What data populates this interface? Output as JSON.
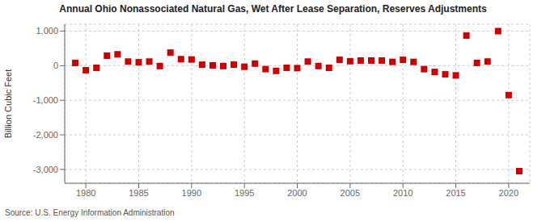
{
  "chart_data": {
    "type": "scatter",
    "title": "Annual Ohio Nonassociated Natural Gas, Wet After Lease Separation, Reserves Adjustments",
    "ylabel": "Billion Cubic Feet",
    "annotations": [
      "Source: U.S. Energy Information Administration"
    ],
    "color": "#cc0000",
    "marker": "square",
    "grid": true,
    "xlim": [
      1978,
      2022
    ],
    "ylim": [
      -3400,
      1200
    ],
    "xticks": [
      1980,
      1985,
      1990,
      1995,
      2000,
      2005,
      2010,
      2015,
      2020
    ],
    "yticks": [
      {
        "value": 1000,
        "label": "1,000"
      },
      0,
      {
        "value": -1000,
        "label": "-1,000"
      },
      {
        "value": -2000,
        "label": "-2,000"
      },
      {
        "value": -3000,
        "label": "-3,000"
      }
    ],
    "x": [
      1979,
      1980,
      1981,
      1982,
      1983,
      1984,
      1985,
      1986,
      1987,
      1988,
      1989,
      1990,
      1991,
      1992,
      1993,
      1994,
      1995,
      1996,
      1997,
      1998,
      1999,
      2000,
      2001,
      2002,
      2003,
      2004,
      2005,
      2006,
      2007,
      2008,
      2009,
      2010,
      2011,
      2012,
      2013,
      2014,
      2015,
      2016,
      2017,
      2018,
      2019,
      2020,
      2021
    ],
    "values": [
      80,
      -130,
      -60,
      290,
      330,
      120,
      100,
      120,
      -10,
      380,
      190,
      180,
      30,
      10,
      -10,
      30,
      -30,
      60,
      -100,
      -150,
      -60,
      -70,
      120,
      -10,
      -60,
      170,
      130,
      150,
      150,
      150,
      110,
      170,
      110,
      -100,
      -180,
      -250,
      -280,
      870,
      80,
      120,
      1000,
      -850,
      -3050
    ]
  }
}
